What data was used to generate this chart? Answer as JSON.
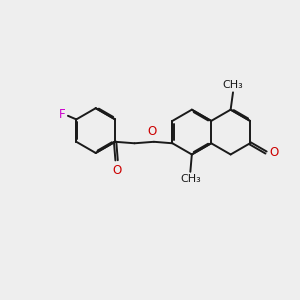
{
  "bg_color": "#eeeeee",
  "bond_color": "#1a1a1a",
  "oxygen_color": "#cc0000",
  "fluorine_color": "#cc00cc",
  "lw": 1.4,
  "dlw": 1.4,
  "doff": 0.018,
  "fs": 8.5,
  "fs_small": 8.0,
  "xlim": [
    0.0,
    10.0
  ],
  "ylim": [
    -1.5,
    4.5
  ],
  "figsize": [
    3.0,
    3.0
  ],
  "dpi": 100
}
